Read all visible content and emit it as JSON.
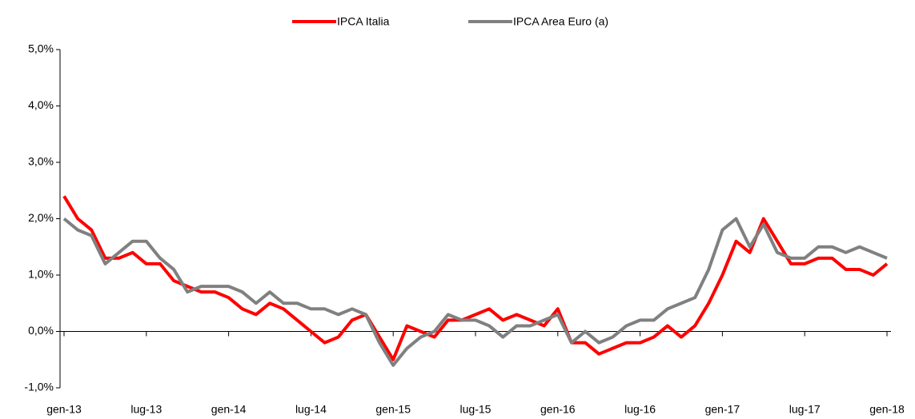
{
  "chart_data": {
    "type": "line",
    "categories": [
      "gen-13",
      null,
      null,
      null,
      null,
      null,
      "lug-13",
      null,
      null,
      null,
      null,
      null,
      "gen-14",
      null,
      null,
      null,
      null,
      null,
      "lug-14",
      null,
      null,
      null,
      null,
      null,
      "gen-15",
      null,
      null,
      null,
      null,
      null,
      "lug-15",
      null,
      null,
      null,
      null,
      null,
      "gen-16",
      null,
      null,
      null,
      null,
      null,
      "lug-16",
      null,
      null,
      null,
      null,
      null,
      "gen-17",
      null,
      null,
      null,
      null,
      null,
      "lug-17",
      null,
      null,
      null,
      null,
      null,
      "gen-18"
    ],
    "series": [
      {
        "name": "IPCA Italia",
        "color": "#ff0000",
        "values": [
          2.4,
          2.0,
          1.8,
          1.3,
          1.3,
          1.4,
          1.2,
          1.2,
          0.9,
          0.8,
          0.7,
          0.7,
          0.6,
          0.4,
          0.3,
          0.5,
          0.4,
          0.2,
          0.0,
          -0.2,
          -0.1,
          0.2,
          0.3,
          -0.1,
          -0.5,
          0.1,
          0.0,
          -0.1,
          0.2,
          0.2,
          0.3,
          0.4,
          0.2,
          0.3,
          0.2,
          0.1,
          0.4,
          -0.2,
          -0.2,
          -0.4,
          -0.3,
          -0.2,
          -0.2,
          -0.1,
          0.1,
          -0.1,
          0.1,
          0.5,
          1.0,
          1.6,
          1.4,
          2.0,
          1.6,
          1.2,
          1.2,
          1.3,
          1.3,
          1.1,
          1.1,
          1.0,
          1.2
        ]
      },
      {
        "name": "IPCA Area Euro (a)",
        "color": "#808080",
        "values": [
          2.0,
          1.8,
          1.7,
          1.2,
          1.4,
          1.6,
          1.6,
          1.3,
          1.1,
          0.7,
          0.8,
          0.8,
          0.8,
          0.7,
          0.5,
          0.7,
          0.5,
          0.5,
          0.4,
          0.4,
          0.3,
          0.4,
          0.3,
          -0.2,
          -0.6,
          -0.3,
          -0.1,
          0.0,
          0.3,
          0.2,
          0.2,
          0.1,
          -0.1,
          0.1,
          0.1,
          0.2,
          0.3,
          -0.2,
          0.0,
          -0.2,
          -0.1,
          0.1,
          0.2,
          0.2,
          0.4,
          0.5,
          0.6,
          1.1,
          1.8,
          2.0,
          1.5,
          1.9,
          1.4,
          1.3,
          1.3,
          1.5,
          1.5,
          1.4,
          1.5,
          1.4,
          1.3
        ]
      }
    ],
    "ylim": [
      -1,
      5
    ],
    "yticks": [
      {
        "value": -1,
        "label": "-1,0%"
      },
      {
        "value": 0,
        "label": "0,0%"
      },
      {
        "value": 1,
        "label": "1,0%"
      },
      {
        "value": 2,
        "label": "2,0%"
      },
      {
        "value": 3,
        "label": "3,0%"
      },
      {
        "value": 4,
        "label": "4,0%"
      },
      {
        "value": 5,
        "label": "5,0%"
      }
    ],
    "legend": "top"
  }
}
